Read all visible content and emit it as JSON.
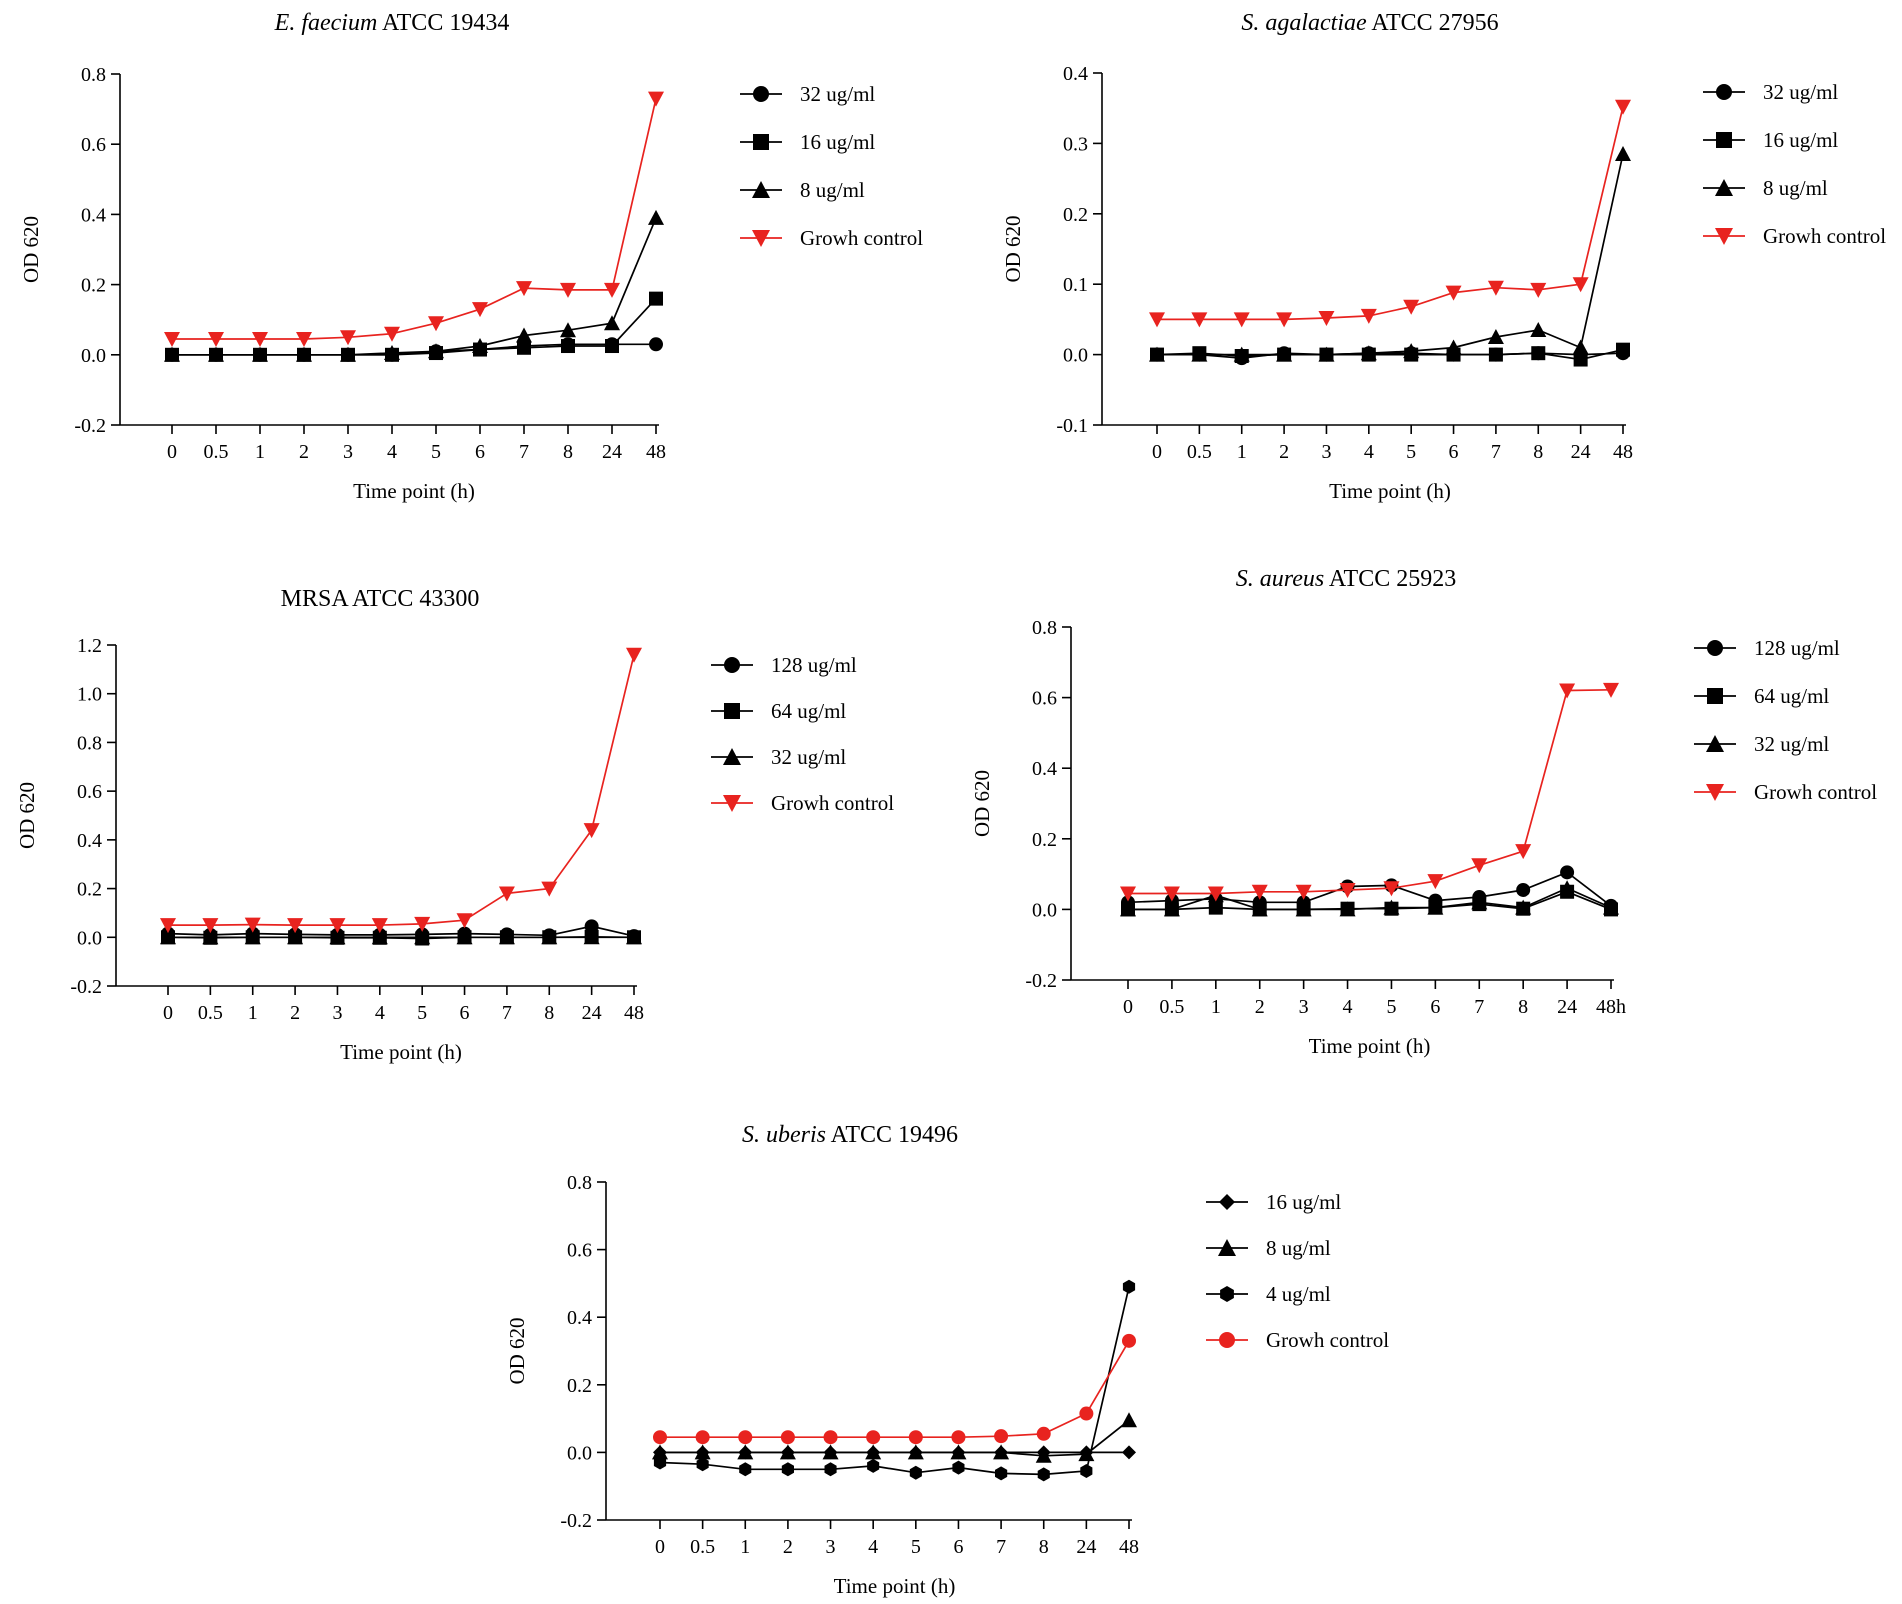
{
  "colors": {
    "red": "#e8231f",
    "black": "#000000"
  },
  "chart_data": [
    {
      "type": "line",
      "title_italic": "E. faecium",
      "title_rest": " ATCC 19434",
      "xlabel": "Time point (h)",
      "ylabel": "OD 620",
      "categories": [
        "0",
        "0.5",
        "1",
        "2",
        "3",
        "4",
        "5",
        "6",
        "7",
        "8",
        "24",
        "48"
      ],
      "ylim": [
        -0.2,
        0.8
      ],
      "yticks": [
        -0.2,
        0.0,
        0.2,
        0.4,
        0.6,
        0.8
      ],
      "ytick_labels": [
        "-0.2",
        "0.0",
        "0.2",
        "0.4",
        "0.6",
        "0.8"
      ],
      "legend_position": "right",
      "series": [
        {
          "name": "32 ug/ml",
          "marker": "circle",
          "color": "#000000",
          "values": [
            0.0,
            0.0,
            0.0,
            0.0,
            0.0,
            0.0,
            0.01,
            0.015,
            0.025,
            0.03,
            0.03,
            0.03
          ]
        },
        {
          "name": "16 ug/ml",
          "marker": "square",
          "color": "#000000",
          "values": [
            0.0,
            0.0,
            0.0,
            0.0,
            0.0,
            0.0,
            0.005,
            0.015,
            0.02,
            0.025,
            0.025,
            0.16
          ]
        },
        {
          "name": "8 ug/ml",
          "marker": "triangle-up",
          "color": "#000000",
          "values": [
            0.0,
            0.0,
            0.0,
            0.0,
            0.0,
            0.005,
            0.01,
            0.025,
            0.055,
            0.07,
            0.09,
            0.39
          ]
        },
        {
          "name": "Growh control",
          "marker": "triangle-down",
          "color": "#e8231f",
          "values": [
            0.045,
            0.045,
            0.045,
            0.045,
            0.05,
            0.06,
            0.09,
            0.13,
            0.19,
            0.185,
            0.185,
            0.73
          ]
        }
      ]
    },
    {
      "type": "line",
      "title_italic": "S. agalactiae",
      "title_rest": " ATCC 27956",
      "xlabel": "Time point (h)",
      "ylabel": "OD 620",
      "categories": [
        "0",
        "0.5",
        "1",
        "2",
        "3",
        "4",
        "5",
        "6",
        "7",
        "8",
        "24",
        "48"
      ],
      "ylim": [
        -0.1,
        0.4
      ],
      "yticks": [
        -0.1,
        0.0,
        0.1,
        0.2,
        0.3,
        0.4
      ],
      "ytick_labels": [
        "-0.1",
        "0.0",
        "0.1",
        "0.2",
        "0.3",
        "0.4"
      ],
      "legend_position": "right",
      "series": [
        {
          "name": "32 ug/ml",
          "marker": "circle",
          "color": "#000000",
          "values": [
            0.0,
            0.0,
            -0.005,
            0.002,
            0.0,
            0.002,
            0.002,
            0.0,
            0.0,
            0.002,
            0.0,
            0.002
          ]
        },
        {
          "name": "16 ug/ml",
          "marker": "square",
          "color": "#000000",
          "values": [
            0.0,
            0.002,
            -0.002,
            0.0,
            0.0,
            0.0,
            0.0,
            0.0,
            0.0,
            0.002,
            -0.007,
            0.007
          ]
        },
        {
          "name": "8 ug/ml",
          "marker": "triangle-up",
          "color": "#000000",
          "values": [
            0.0,
            0.0,
            0.0,
            0.0,
            0.0,
            0.002,
            0.005,
            0.01,
            0.025,
            0.035,
            0.01,
            0.285
          ]
        },
        {
          "name": "Growh control",
          "marker": "triangle-down",
          "color": "#e8231f",
          "values": [
            0.05,
            0.05,
            0.05,
            0.05,
            0.052,
            0.055,
            0.068,
            0.088,
            0.095,
            0.092,
            0.1,
            0.352
          ]
        }
      ]
    },
    {
      "type": "line",
      "title_italic": "",
      "title_rest": "MRSA ATCC 43300",
      "xlabel": "Time point (h)",
      "ylabel": "OD 620",
      "categories": [
        "0",
        "0.5",
        "1",
        "2",
        "3",
        "4",
        "5",
        "6",
        "7",
        "8",
        "24",
        "48"
      ],
      "ylim": [
        -0.2,
        1.2
      ],
      "yticks": [
        -0.2,
        0.0,
        0.2,
        0.4,
        0.6,
        0.8,
        1.0,
        1.2
      ],
      "ytick_labels": [
        "-0.2",
        "0.0",
        "0.2",
        "0.4",
        "0.6",
        "0.8",
        "1.0",
        "1.2"
      ],
      "legend_position": "right",
      "series": [
        {
          "name": "128 ug/ml",
          "marker": "circle",
          "color": "#000000",
          "values": [
            0.015,
            0.01,
            0.015,
            0.012,
            0.01,
            0.01,
            0.012,
            0.015,
            0.012,
            0.008,
            0.045,
            0.005
          ]
        },
        {
          "name": "64 ug/ml",
          "marker": "square",
          "color": "#000000",
          "values": [
            0.0,
            -0.002,
            0.0,
            0.0,
            -0.002,
            -0.002,
            -0.005,
            0.0,
            0.0,
            0.0,
            0.002,
            0.0
          ]
        },
        {
          "name": "32 ug/ml",
          "marker": "triangle-up",
          "color": "#000000",
          "values": [
            0.0,
            0.0,
            0.0,
            0.0,
            0.0,
            0.0,
            0.0,
            0.0,
            0.0,
            0.0,
            0.0,
            0.0
          ]
        },
        {
          "name": "Growh control",
          "marker": "triangle-down",
          "color": "#e8231f",
          "values": [
            0.05,
            0.05,
            0.052,
            0.05,
            0.05,
            0.05,
            0.055,
            0.07,
            0.18,
            0.2,
            0.44,
            1.16
          ]
        }
      ]
    },
    {
      "type": "line",
      "title_italic": "S. aureus",
      "title_rest": " ATCC 25923",
      "xlabel": "Time point (h)",
      "ylabel": "OD 620",
      "categories": [
        "0",
        "0.5",
        "1",
        "2",
        "3",
        "4",
        "5",
        "6",
        "7",
        "8",
        "24",
        "48h"
      ],
      "ylim": [
        -0.2,
        0.8
      ],
      "yticks": [
        -0.2,
        0.0,
        0.2,
        0.4,
        0.6,
        0.8
      ],
      "ytick_labels": [
        "-0.2",
        "0.0",
        "0.2",
        "0.4",
        "0.6",
        "0.8"
      ],
      "legend_position": "right",
      "series": [
        {
          "name": "128 ug/ml",
          "marker": "circle",
          "color": "#000000",
          "values": [
            0.02,
            0.025,
            0.03,
            0.02,
            0.02,
            0.065,
            0.068,
            0.025,
            0.035,
            0.055,
            0.105,
            0.01
          ]
        },
        {
          "name": "64 ug/ml",
          "marker": "square",
          "color": "#000000",
          "values": [
            0.0,
            0.0,
            0.005,
            0.0,
            0.0,
            0.002,
            0.002,
            0.005,
            0.015,
            0.002,
            0.05,
            0.0
          ]
        },
        {
          "name": "32 ug/ml",
          "marker": "triangle-up",
          "color": "#000000",
          "values": [
            0.0,
            0.0,
            0.04,
            0.0,
            0.0,
            0.0,
            0.005,
            0.005,
            0.02,
            0.005,
            0.06,
            0.005
          ]
        },
        {
          "name": "Growh control",
          "marker": "triangle-down",
          "color": "#e8231f",
          "values": [
            0.045,
            0.045,
            0.045,
            0.05,
            0.05,
            0.055,
            0.06,
            0.08,
            0.125,
            0.165,
            0.62,
            0.622
          ]
        }
      ]
    },
    {
      "type": "line",
      "title_italic": "S. uberis",
      "title_rest": " ATCC 19496",
      "xlabel": "Time point (h)",
      "ylabel": "OD 620",
      "categories": [
        "0",
        "0.5",
        "1",
        "2",
        "3",
        "4",
        "5",
        "6",
        "7",
        "8",
        "24",
        "48"
      ],
      "ylim": [
        -0.2,
        0.8
      ],
      "yticks": [
        -0.2,
        0.0,
        0.2,
        0.4,
        0.6,
        0.8
      ],
      "ytick_labels": [
        "-0.2",
        "0.0",
        "0.2",
        "0.4",
        "0.6",
        "0.8"
      ],
      "legend_position": "right",
      "series": [
        {
          "name": "16 ug/ml",
          "marker": "diamond",
          "color": "#000000",
          "values": [
            0.0,
            0.0,
            0.0,
            0.0,
            0.0,
            0.0,
            0.0,
            0.0,
            0.0,
            0.0,
            0.0,
            0.0
          ]
        },
        {
          "name": "8 ug/ml",
          "marker": "triangle-up",
          "color": "#000000",
          "values": [
            0.0,
            0.0,
            0.0,
            0.0,
            0.0,
            0.0,
            0.0,
            0.0,
            0.0,
            -0.01,
            -0.005,
            0.095
          ]
        },
        {
          "name": "4 ug/ml",
          "marker": "hexagon",
          "color": "#000000",
          "values": [
            -0.03,
            -0.035,
            -0.05,
            -0.05,
            -0.05,
            -0.04,
            -0.06,
            -0.045,
            -0.062,
            -0.065,
            -0.055,
            0.49
          ]
        },
        {
          "name": "Growh control",
          "marker": "circle",
          "color": "#e8231f",
          "values": [
            0.045,
            0.045,
            0.045,
            0.045,
            0.045,
            0.045,
            0.045,
            0.045,
            0.048,
            0.055,
            0.115,
            0.33
          ]
        }
      ]
    }
  ]
}
